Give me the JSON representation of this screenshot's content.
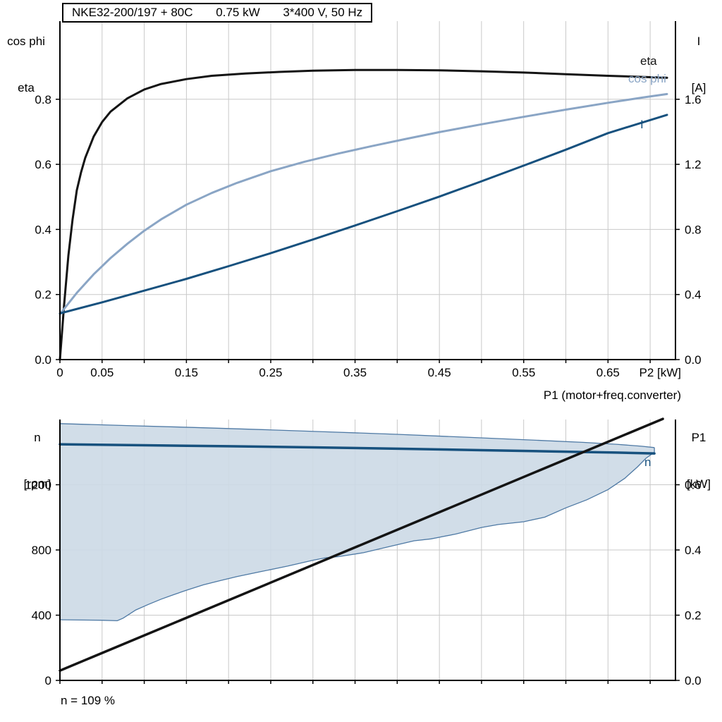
{
  "title_box": {
    "model": "NKE32-200/197 + 80C",
    "power": "0.75 kW",
    "supply": "3*400 V, 50 Hz"
  },
  "axis_titles": {
    "top_left_line1": "cos phi",
    "top_left_line2": "eta",
    "top_right_line1": "I",
    "top_right_line2": "[A]",
    "bottom_left_line1": "n",
    "bottom_left_line2": "[rpm]",
    "bottom_right_line1": "P1",
    "bottom_right_line2": "[kW]"
  },
  "colors": {
    "eta": "#141414",
    "cos_phi": "#8aa5c5",
    "current": "#17517e",
    "speed": "#17517e",
    "p1": "#141414",
    "envelope_fill": "#ccd9e6",
    "envelope_edge": "#4e79a4",
    "grid": "#c9c9c9",
    "axis": "#000000",
    "text": "#000000"
  },
  "chart_data": [
    {
      "type": "line",
      "title": "NKE32-200/197 + 80C  0.75 kW  3*400 V, 50 Hz",
      "xlabel": "P2 [kW]",
      "ylabel_left": "cos phi / eta",
      "ylabel_right": "I [A]",
      "xlim": [
        0,
        0.73
      ],
      "ylim_left": [
        0,
        1.04
      ],
      "ylim_right": [
        0,
        2.08
      ],
      "x_grid_step": 0.05,
      "x_ticks": [
        [
          0,
          "0"
        ],
        [
          0.05,
          "0.05"
        ],
        [
          0.15,
          "0.15"
        ],
        [
          0.25,
          "0.25"
        ],
        [
          0.35,
          "0.35"
        ],
        [
          0.45,
          "0.45"
        ],
        [
          0.55,
          "0.55"
        ],
        [
          0.65,
          "0.65"
        ]
      ],
      "y_ticks_left": [
        [
          0,
          "0.0"
        ],
        [
          0.2,
          "0.2"
        ],
        [
          0.4,
          "0.4"
        ],
        [
          0.6,
          "0.6"
        ],
        [
          0.8,
          "0.8"
        ]
      ],
      "y_ticks_right": [
        [
          0,
          "0.0"
        ],
        [
          0.4,
          "0.4"
        ],
        [
          0.8,
          "0.8"
        ],
        [
          1.2,
          "1.2"
        ],
        [
          1.6,
          "1.6"
        ]
      ],
      "series": [
        {
          "name": "eta",
          "axis": "left",
          "color_key": "eta",
          "width": 3,
          "points": [
            [
              0,
              0
            ],
            [
              0.005,
              0.17
            ],
            [
              0.01,
              0.32
            ],
            [
              0.015,
              0.43
            ],
            [
              0.02,
              0.52
            ],
            [
              0.025,
              0.575
            ],
            [
              0.03,
              0.62
            ],
            [
              0.04,
              0.685
            ],
            [
              0.05,
              0.73
            ],
            [
              0.06,
              0.762
            ],
            [
              0.08,
              0.803
            ],
            [
              0.1,
              0.83
            ],
            [
              0.12,
              0.847
            ],
            [
              0.15,
              0.862
            ],
            [
              0.18,
              0.872
            ],
            [
              0.22,
              0.879
            ],
            [
              0.26,
              0.884
            ],
            [
              0.3,
              0.888
            ],
            [
              0.35,
              0.89
            ],
            [
              0.4,
              0.89
            ],
            [
              0.45,
              0.889
            ],
            [
              0.5,
              0.886
            ],
            [
              0.55,
              0.882
            ],
            [
              0.6,
              0.877
            ],
            [
              0.65,
              0.872
            ],
            [
              0.72,
              0.866
            ]
          ]
        },
        {
          "name": "cos phi",
          "axis": "left",
          "color_key": "cos_phi",
          "width": 3,
          "points": [
            [
              0,
              0.14
            ],
            [
              0.02,
              0.205
            ],
            [
              0.04,
              0.262
            ],
            [
              0.06,
              0.312
            ],
            [
              0.08,
              0.356
            ],
            [
              0.1,
              0.396
            ],
            [
              0.12,
              0.431
            ],
            [
              0.15,
              0.476
            ],
            [
              0.18,
              0.512
            ],
            [
              0.21,
              0.543
            ],
            [
              0.25,
              0.579
            ],
            [
              0.29,
              0.608
            ],
            [
              0.33,
              0.633
            ],
            [
              0.37,
              0.656
            ],
            [
              0.41,
              0.678
            ],
            [
              0.45,
              0.699
            ],
            [
              0.5,
              0.723
            ],
            [
              0.55,
              0.746
            ],
            [
              0.6,
              0.768
            ],
            [
              0.65,
              0.789
            ],
            [
              0.69,
              0.805
            ],
            [
              0.72,
              0.816
            ]
          ]
        },
        {
          "name": "I",
          "axis": "left",
          "color_key": "current",
          "width": 3,
          "points": [
            [
              0,
              0.142
            ],
            [
              0.05,
              0.176
            ],
            [
              0.1,
              0.212
            ],
            [
              0.15,
              0.248
            ],
            [
              0.2,
              0.287
            ],
            [
              0.25,
              0.327
            ],
            [
              0.3,
              0.369
            ],
            [
              0.35,
              0.412
            ],
            [
              0.4,
              0.456
            ],
            [
              0.45,
              0.501
            ],
            [
              0.5,
              0.548
            ],
            [
              0.55,
              0.596
            ],
            [
              0.6,
              0.645
            ],
            [
              0.65,
              0.696
            ],
            [
              0.72,
              0.752
            ]
          ]
        }
      ]
    },
    {
      "type": "line",
      "title": "",
      "xlabel": "",
      "ylabel_left": "n [rpm]",
      "ylabel_right": "P1 [kW]",
      "right_axis_curve_label": "P1 (motor+freq.converter)",
      "footnote": "n = 109 %",
      "xlim": [
        0,
        0.73
      ],
      "ylim_left": [
        0,
        1600
      ],
      "ylim_right": [
        0,
        0.8
      ],
      "x_grid_step": 0.05,
      "x_ticks": [],
      "y_ticks_left": [
        [
          0,
          "0"
        ],
        [
          400,
          "400"
        ],
        [
          800,
          "800"
        ],
        [
          1200,
          "1200"
        ]
      ],
      "y_ticks_right": [
        [
          0,
          "0.0"
        ],
        [
          0.2,
          "0.2"
        ],
        [
          0.4,
          "0.4"
        ],
        [
          0.6,
          "0.6"
        ]
      ],
      "envelope": {
        "upper": [
          [
            0,
            1575
          ],
          [
            0.08,
            1563
          ],
          [
            0.16,
            1551
          ],
          [
            0.24,
            1538
          ],
          [
            0.32,
            1524
          ],
          [
            0.4,
            1509
          ],
          [
            0.48,
            1492
          ],
          [
            0.56,
            1474
          ],
          [
            0.62,
            1460
          ],
          [
            0.66,
            1448
          ],
          [
            0.69,
            1436
          ],
          [
            0.705,
            1428
          ]
        ],
        "lower": [
          [
            0,
            372
          ],
          [
            0.05,
            369
          ],
          [
            0.068,
            366
          ],
          [
            0.075,
            382
          ],
          [
            0.09,
            432
          ],
          [
            0.105,
            466
          ],
          [
            0.12,
            498
          ],
          [
            0.135,
            526
          ],
          [
            0.15,
            553
          ],
          [
            0.17,
            586
          ],
          [
            0.19,
            612
          ],
          [
            0.21,
            637
          ],
          [
            0.24,
            669
          ],
          [
            0.27,
            701
          ],
          [
            0.3,
            737
          ],
          [
            0.315,
            752
          ],
          [
            0.33,
            759
          ],
          [
            0.36,
            783
          ],
          [
            0.39,
            820
          ],
          [
            0.42,
            856
          ],
          [
            0.44,
            868
          ],
          [
            0.47,
            898
          ],
          [
            0.5,
            938
          ],
          [
            0.52,
            956
          ],
          [
            0.55,
            973
          ],
          [
            0.575,
            1001
          ],
          [
            0.6,
            1058
          ],
          [
            0.625,
            1108
          ],
          [
            0.65,
            1170
          ],
          [
            0.67,
            1240
          ],
          [
            0.685,
            1310
          ],
          [
            0.695,
            1362
          ],
          [
            0.705,
            1400
          ]
        ]
      },
      "series": [
        {
          "name": "n",
          "axis": "left",
          "color_key": "speed",
          "width": 3.5,
          "points": [
            [
              0,
              1448
            ],
            [
              0.1,
              1442
            ],
            [
              0.2,
              1436
            ],
            [
              0.3,
              1429
            ],
            [
              0.4,
              1421
            ],
            [
              0.5,
              1412
            ],
            [
              0.6,
              1403
            ],
            [
              0.66,
              1397
            ],
            [
              0.705,
              1392
            ]
          ]
        },
        {
          "name": "P1",
          "axis": "right",
          "color_key": "p1",
          "width": 3.5,
          "points": [
            [
              0,
              0.03
            ],
            [
              0.715,
              0.802
            ]
          ]
        }
      ]
    }
  ]
}
